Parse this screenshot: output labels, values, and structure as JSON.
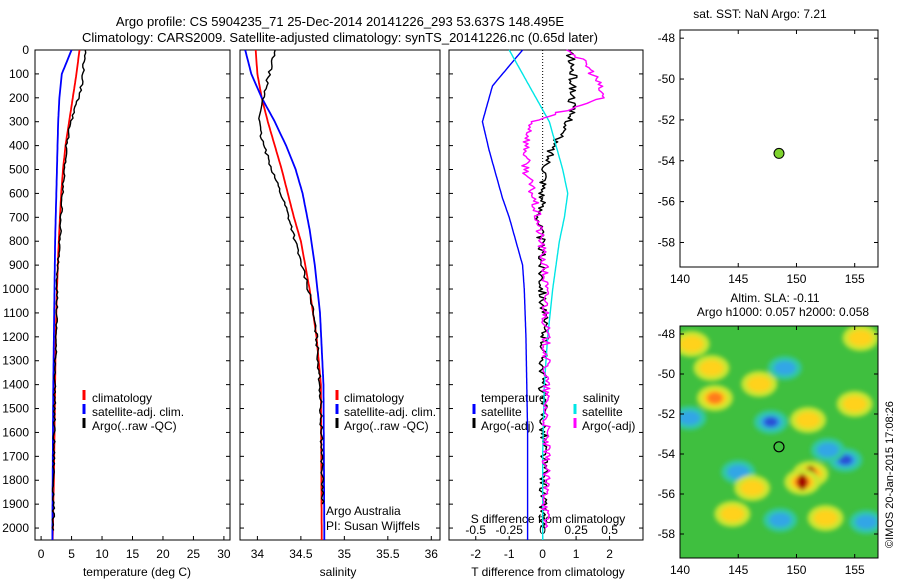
{
  "title_line1": "Argo profile: CS 5904235_71 25-Dec-2014 20141226_293 53.637S 148.495E",
  "title_line2": "Climatology: CARS2009. Satellite-adjusted climatology: synTS_20141226.nc (0.65d later)",
  "colors": {
    "climatology": "#ff0000",
    "satellite": "#0000ff",
    "argo": "#000000",
    "sal_satellite": "#00e6e6",
    "sal_argo": "#ff00ff"
  },
  "chart_data": [
    {
      "type": "line",
      "id": "temperature",
      "xlabel": "temperature (deg C)",
      "ylim": [
        2050,
        0
      ],
      "xlim": [
        -1,
        31
      ],
      "xticks": [
        "0",
        "5",
        "10",
        "15",
        "20",
        "25",
        "30"
      ],
      "yticks": [
        "0",
        "100",
        "200",
        "300",
        "400",
        "500",
        "600",
        "700",
        "800",
        "900",
        "1000",
        "1100",
        "1200",
        "1300",
        "1400",
        "1500",
        "1600",
        "1700",
        "1800",
        "1900",
        "2000"
      ],
      "legend": [
        "climatology",
        "satellite-adj. clim.",
        "Argo(..raw -QC)"
      ],
      "series": [
        {
          "name": "climatology",
          "x": [
            6.3,
            5.8,
            5.2,
            4.6,
            4.0,
            3.6,
            3.3,
            3.1,
            2.9,
            2.6,
            2.4,
            2.3,
            2.2,
            2.1,
            2.0,
            1.95,
            1.9
          ],
          "y": [
            0,
            100,
            200,
            300,
            400,
            500,
            600,
            700,
            800,
            1000,
            1200,
            1400,
            1600,
            1800,
            1900,
            2000,
            2050
          ]
        },
        {
          "name": "satellite-adj. clim.",
          "x": [
            5.0,
            3.4,
            3.0,
            2.8,
            2.7,
            2.6,
            2.5,
            2.4,
            2.3,
            2.2,
            2.1,
            2.0,
            1.95,
            1.9,
            1.85
          ],
          "y": [
            0,
            100,
            200,
            300,
            400,
            500,
            600,
            700,
            800,
            1000,
            1200,
            1400,
            1600,
            1800,
            2050
          ]
        },
        {
          "name": "Argo(..raw -QC)",
          "x": [
            7.3,
            7.0,
            6.8,
            6.4,
            5.5,
            4.7,
            4.2,
            3.9,
            3.6,
            3.4,
            3.3,
            3.1,
            2.9,
            2.7,
            2.6,
            2.5,
            2.4,
            2.3,
            2.2,
            2.1,
            2.05,
            2.0
          ],
          "y": [
            0,
            60,
            120,
            180,
            250,
            320,
            400,
            480,
            560,
            640,
            700,
            780,
            850,
            950,
            1050,
            1150,
            1250,
            1350,
            1500,
            1650,
            1800,
            2010
          ]
        }
      ]
    },
    {
      "type": "line",
      "id": "salinity",
      "xlabel": "salinity",
      "ylim": [
        2050,
        0
      ],
      "xlim": [
        33.8,
        36.1
      ],
      "xticks": [
        "34",
        "34.5",
        "35",
        "35.5",
        "36"
      ],
      "legend": [
        "climatology",
        "satellite-adj. clim.",
        "Argo(..raw -QC)"
      ],
      "annotations": [
        "Argo Australia",
        "PI: Susan Wijffels"
      ],
      "series": [
        {
          "name": "climatology",
          "x": [
            33.98,
            34.0,
            34.05,
            34.12,
            34.2,
            34.28,
            34.35,
            34.42,
            34.5,
            34.6,
            34.68,
            34.73,
            34.74
          ],
          "y": [
            0,
            100,
            200,
            300,
            400,
            500,
            600,
            700,
            800,
            1000,
            1200,
            1400,
            2050
          ]
        },
        {
          "name": "satellite-adj. clim.",
          "x": [
            33.86,
            33.93,
            34.05,
            34.2,
            34.33,
            34.44,
            34.52,
            34.6,
            34.66,
            34.72,
            34.76,
            34.77
          ],
          "y": [
            0,
            100,
            200,
            300,
            400,
            500,
            600,
            750,
            900,
            1100,
            1400,
            2050
          ]
        },
        {
          "name": "Argo(..raw -QC)",
          "x": [
            34.2,
            34.15,
            34.1,
            34.05,
            34.02,
            34.04,
            34.1,
            34.17,
            34.25,
            34.33,
            34.4,
            34.47,
            34.55,
            34.62,
            34.68,
            34.72,
            34.74,
            34.75
          ],
          "y": [
            0,
            80,
            150,
            230,
            310,
            360,
            430,
            500,
            580,
            660,
            750,
            850,
            950,
            1050,
            1200,
            1400,
            1650,
            1900
          ]
        }
      ]
    },
    {
      "type": "line",
      "id": "difference",
      "xlabel": "T difference from climatology",
      "xlabel_top": "S difference from climatology",
      "ylim": [
        2050,
        0
      ],
      "xlim": [
        -2.8,
        3.0
      ],
      "xticks_T": [
        "-2",
        "-1",
        "0",
        "1",
        "2"
      ],
      "xticks_S": [
        "-0.5",
        "-0.25",
        "0",
        "0.25",
        "0.5"
      ],
      "legend_left_title": "temperature",
      "legend_right_title": "salinity",
      "legend": [
        "satellite",
        "Argo(-adj)",
        "satellite",
        "Argo(-adj)"
      ],
      "series": [
        {
          "name": "temperature satellite",
          "x": [
            -0.6,
            -1.5,
            -1.8,
            -1.6,
            -1.4,
            -1.2,
            -1.0,
            -0.8,
            -0.6,
            -0.55,
            -0.5,
            -0.45,
            -0.45
          ],
          "y": [
            0,
            150,
            300,
            420,
            520,
            620,
            700,
            800,
            900,
            1000,
            1200,
            1600,
            2050
          ]
        },
        {
          "name": "temperature Argo(-adj)",
          "x": [
            0.8,
            0.9,
            0.9,
            0.8,
            0.3,
            0.1,
            0.0,
            -0.1,
            -0.05,
            0.0,
            0.05,
            0.0,
            0.05,
            0.0
          ],
          "y": [
            0,
            100,
            200,
            300,
            400,
            500,
            600,
            700,
            800,
            1000,
            1200,
            1400,
            1700,
            2000
          ]
        },
        {
          "name": "salinity satellite",
          "x": [
            -1.0,
            -0.6,
            -0.2,
            0.2,
            0.4,
            0.6,
            0.75,
            0.65,
            0.5,
            0.3,
            0.15,
            0.05,
            0.0,
            0.0
          ],
          "y": [
            0,
            100,
            200,
            300,
            400,
            500,
            600,
            700,
            800,
            1000,
            1200,
            1400,
            1700,
            2050
          ]
        },
        {
          "name": "salinity Argo(-adj)",
          "x": [
            0.8,
            1.3,
            1.6,
            1.8,
            -0.3,
            -0.5,
            -0.5,
            -0.3,
            -0.1,
            0.05,
            0.1,
            0.1,
            0.1
          ],
          "y": [
            0,
            60,
            120,
            200,
            300,
            400,
            500,
            600,
            750,
            900,
            1100,
            1400,
            2000
          ]
        }
      ]
    },
    {
      "type": "scatter",
      "id": "sst-map",
      "title": "sat. SST: NaN Argo: 7.21",
      "xlim": [
        140,
        157
      ],
      "ylim": [
        -59.2,
        -47.6
      ],
      "xticks": [
        "140",
        "145",
        "150",
        "155"
      ],
      "yticks": [
        "-48",
        "-50",
        "-52",
        "-54",
        "-56",
        "-58"
      ],
      "point": {
        "x": 148.5,
        "y": -53.64,
        "color": "#7fd32f"
      }
    },
    {
      "type": "heatmap",
      "id": "sla-map",
      "title_line1": "Altim. SLA: -0.11",
      "title_line2": "Argo h1000: 0.057 h2000: 0.058",
      "xlim": [
        140,
        157
      ],
      "ylim": [
        -59.2,
        -47.6
      ],
      "xticks": [
        "140",
        "145",
        "150",
        "155"
      ],
      "yticks": [
        "-48",
        "-50",
        "-52",
        "-54",
        "-56",
        "-58"
      ],
      "point": {
        "x": 148.5,
        "y": -53.64
      },
      "blobs": [
        {
          "x": 151.2,
          "y": -55.0,
          "v": 1.0
        },
        {
          "x": 150.5,
          "y": -55.4,
          "v": 0.8
        },
        {
          "x": 143.0,
          "y": -51.2,
          "v": 0.55
        },
        {
          "x": 146.8,
          "y": -50.5,
          "v": 0.5
        },
        {
          "x": 141.0,
          "y": -48.5,
          "v": 0.5
        },
        {
          "x": 151.0,
          "y": -52.3,
          "v": 0.45
        },
        {
          "x": 155.0,
          "y": -51.5,
          "v": 0.45
        },
        {
          "x": 155.5,
          "y": -48.2,
          "v": 0.4
        },
        {
          "x": 152.5,
          "y": -57.2,
          "v": 0.4
        },
        {
          "x": 144.5,
          "y": -57.0,
          "v": 0.45
        },
        {
          "x": 147.8,
          "y": -52.4,
          "v": -0.75
        },
        {
          "x": 154.2,
          "y": -54.3,
          "v": -0.8
        },
        {
          "x": 152.7,
          "y": -53.8,
          "v": -0.5
        },
        {
          "x": 140.8,
          "y": -52.2,
          "v": -0.6
        },
        {
          "x": 149.0,
          "y": -49.7,
          "v": -0.45
        },
        {
          "x": 148.6,
          "y": -57.3,
          "v": -0.5
        },
        {
          "x": 145.0,
          "y": -54.9,
          "v": -0.35
        },
        {
          "x": 156.0,
          "y": -57.4,
          "v": -0.4
        },
        {
          "x": 142.7,
          "y": -49.7,
          "v": 0.35
        },
        {
          "x": 146.2,
          "y": -55.7,
          "v": 0.35
        }
      ]
    }
  ],
  "watermark": "©IMOS 20-Jan-2015 17:08:26"
}
